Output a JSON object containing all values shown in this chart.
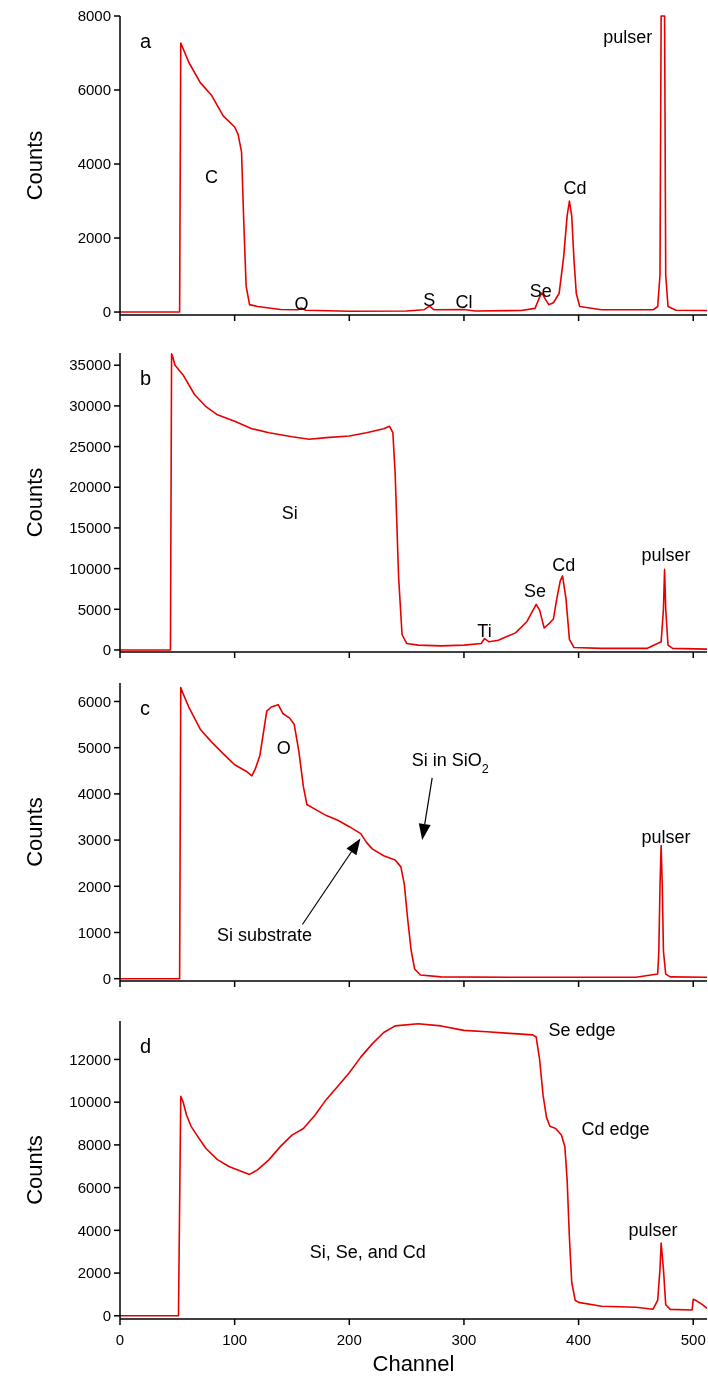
{
  "chart_data": [
    {
      "type": "line",
      "title": "a",
      "ylabel": "Counts",
      "xlim": [
        0,
        512
      ],
      "xticks": [
        0,
        100,
        200,
        300,
        400,
        500
      ],
      "ylim": [
        -80,
        8000
      ],
      "yticks": [
        0,
        2000,
        4000,
        6000,
        8000
      ],
      "tick_labels": "y",
      "series": [
        {
          "color": "#e60000",
          "x": [
            0,
            52,
            53,
            60,
            70,
            80,
            90,
            100,
            103,
            106,
            108,
            110,
            113,
            120,
            140,
            155,
            158,
            162,
            200,
            250,
            265,
            270,
            274,
            300,
            310,
            350,
            362,
            366,
            368,
            371,
            374,
            378,
            383,
            387,
            390,
            392,
            394,
            396,
            398,
            401,
            420,
            465,
            469,
            471,
            472,
            475,
            476,
            478,
            485,
            512
          ],
          "values": [
            0,
            0,
            7270,
            6750,
            6200,
            5850,
            5300,
            5000,
            4800,
            4330,
            2400,
            700,
            200,
            150,
            70,
            60,
            110,
            50,
            20,
            30,
            60,
            160,
            60,
            70,
            30,
            40,
            100,
            400,
            520,
            350,
            200,
            250,
            500,
            1500,
            2600,
            3000,
            2600,
            1400,
            500,
            150,
            60,
            60,
            150,
            1000,
            8000,
            8000,
            1000,
            150,
            50,
            40
          ]
        }
      ],
      "annotations": [
        "C",
        "O",
        "S",
        "Cl",
        "Se",
        "Cd",
        "pulser"
      ]
    },
    {
      "type": "line",
      "title": "b",
      "ylabel": "Counts",
      "xlim": [
        0,
        512
      ],
      "xticks": [
        0,
        100,
        200,
        300,
        400,
        500
      ],
      "ylim": [
        -250,
        36500
      ],
      "yticks": [
        0,
        5000,
        10000,
        15000,
        20000,
        25000,
        30000,
        35000
      ],
      "tick_labels": "y",
      "series": [
        {
          "color": "#e60000",
          "x": [
            0,
            44,
            45,
            46,
            48,
            55,
            65,
            75,
            85,
            100,
            115,
            130,
            150,
            165,
            180,
            200,
            215,
            230,
            235,
            238,
            240,
            243,
            246,
            250,
            260,
            280,
            300,
            315,
            318,
            322,
            330,
            345,
            355,
            363,
            366,
            370,
            374,
            378,
            381,
            384,
            386,
            389,
            392,
            396,
            420,
            460,
            472,
            474,
            475,
            476,
            478,
            482,
            512
          ],
          "values": [
            0,
            0,
            36400,
            36000,
            35000,
            33800,
            31400,
            29900,
            28900,
            28100,
            27200,
            26700,
            26200,
            25900,
            26100,
            26300,
            26700,
            27200,
            27500,
            26700,
            21700,
            9000,
            1900,
            800,
            600,
            500,
            600,
            800,
            1400,
            1000,
            1200,
            2100,
            3500,
            5600,
            4900,
            2700,
            3200,
            3800,
            6300,
            8500,
            9100,
            6300,
            1300,
            300,
            200,
            200,
            1000,
            5000,
            9900,
            5000,
            600,
            200,
            100
          ]
        }
      ],
      "annotations": [
        "Si",
        "Ti",
        "Se",
        "Cd",
        "pulser"
      ]
    },
    {
      "type": "line",
      "title": "c",
      "ylabel": "Counts",
      "xlim": [
        0,
        512
      ],
      "xticks": [
        0,
        100,
        200,
        300,
        400,
        500
      ],
      "ylim": [
        -50,
        6400
      ],
      "yticks": [
        0,
        1000,
        2000,
        3000,
        4000,
        5000,
        6000
      ],
      "tick_labels": "y",
      "series": [
        {
          "color": "#e60000",
          "x": [
            0,
            52,
            53,
            55,
            60,
            65,
            70,
            80,
            90,
            100,
            110,
            115,
            118,
            122,
            125,
            128,
            132,
            138,
            142,
            148,
            152,
            156,
            160,
            163,
            170,
            180,
            190,
            200,
            210,
            215,
            220,
            230,
            240,
            245,
            248,
            251,
            254,
            257,
            262,
            280,
            350,
            450,
            469,
            470,
            471,
            472,
            473,
            474,
            476,
            480,
            512
          ],
          "values": [
            0,
            0,
            6300,
            6170,
            5880,
            5640,
            5400,
            5120,
            4870,
            4630,
            4490,
            4390,
            4540,
            4830,
            5310,
            5790,
            5880,
            5930,
            5740,
            5640,
            5500,
            4920,
            4150,
            3770,
            3670,
            3530,
            3430,
            3290,
            3140,
            2950,
            2810,
            2660,
            2570,
            2420,
            2040,
            1270,
            600,
            210,
            80,
            40,
            30,
            30,
            100,
            600,
            2000,
            2880,
            2000,
            600,
            100,
            40,
            30
          ]
        }
      ],
      "annotations": [
        "O",
        "Si substrate",
        "Si in SiO$_{2}$",
        "pulser"
      ]
    },
    {
      "type": "line",
      "title": "d",
      "xlabel": "Channel",
      "ylabel": "Counts",
      "xlim": [
        0,
        512
      ],
      "xticks": [
        0,
        100,
        200,
        300,
        400,
        500
      ],
      "ylim": [
        -150,
        13800
      ],
      "yticks": [
        0,
        2000,
        4000,
        6000,
        8000,
        10000,
        12000
      ],
      "series": [
        {
          "color": "#e60000",
          "x": [
            0,
            51,
            53,
            55,
            58,
            62,
            67,
            75,
            85,
            95,
            105,
            113,
            120,
            130,
            140,
            150,
            160,
            170,
            180,
            190,
            200,
            210,
            220,
            230,
            240,
            260,
            280,
            300,
            320,
            340,
            360,
            363,
            366,
            369,
            372,
            375,
            380,
            385,
            388,
            390,
            392,
            394,
            397,
            400,
            420,
            450,
            465,
            469,
            471,
            472,
            474,
            476,
            480,
            499,
            500,
            503,
            508,
            512
          ],
          "values": [
            0,
            0,
            10270,
            10020,
            9400,
            8870,
            8460,
            7830,
            7310,
            6990,
            6780,
            6620,
            6830,
            7310,
            7930,
            8460,
            8770,
            9390,
            10130,
            10750,
            11380,
            12110,
            12730,
            13260,
            13570,
            13670,
            13570,
            13360,
            13300,
            13220,
            13150,
            13050,
            12000,
            10330,
            9290,
            8870,
            8770,
            8460,
            7930,
            6370,
            3650,
            1570,
            730,
            630,
            450,
            400,
            310,
            730,
            2190,
            3400,
            2190,
            520,
            300,
            270,
            770,
            700,
            520,
            350
          ]
        }
      ],
      "annotations": [
        "Se edge",
        "Cd edge",
        "pulser",
        "Si, Se, and Cd"
      ]
    }
  ]
}
